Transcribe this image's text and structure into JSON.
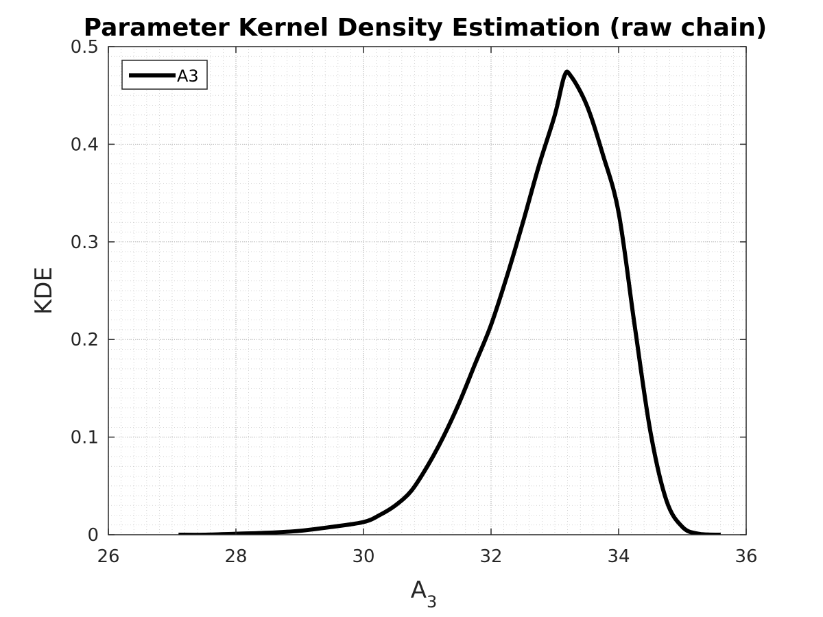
{
  "chart_data": {
    "type": "line",
    "title": "Parameter Kernel Density Estimation (raw chain)",
    "xlabel": {
      "base": "A",
      "subscript": "3"
    },
    "ylabel": "KDE",
    "xlim": [
      26,
      36
    ],
    "ylim": [
      0,
      0.5
    ],
    "xticks": [
      26,
      28,
      30,
      32,
      34,
      36
    ],
    "xtick_labels": [
      "26",
      "28",
      "30",
      "32",
      "34",
      "36"
    ],
    "yticks": [
      0,
      0.1,
      0.2,
      0.3,
      0.4,
      0.5
    ],
    "ytick_labels": [
      "0",
      "0.1",
      "0.2",
      "0.3",
      "0.4",
      "0.5"
    ],
    "grid": "minor dotted",
    "legend_position": "top-left",
    "series": [
      {
        "name": "A3",
        "color": "#000000",
        "x": [
          27.1,
          27.5,
          28.0,
          28.5,
          29.0,
          29.5,
          30.0,
          30.25,
          30.5,
          30.75,
          31.0,
          31.25,
          31.5,
          31.75,
          32.0,
          32.25,
          32.5,
          32.75,
          33.0,
          33.15,
          33.25,
          33.5,
          33.75,
          34.0,
          34.25,
          34.5,
          34.75,
          35.0,
          35.25,
          35.6
        ],
        "y": [
          0.0,
          0.0,
          0.001,
          0.002,
          0.004,
          0.008,
          0.013,
          0.02,
          0.03,
          0.045,
          0.07,
          0.1,
          0.135,
          0.175,
          0.215,
          0.265,
          0.32,
          0.378,
          0.43,
          0.47,
          0.47,
          0.44,
          0.39,
          0.33,
          0.215,
          0.105,
          0.035,
          0.008,
          0.001,
          0.0
        ]
      }
    ]
  }
}
